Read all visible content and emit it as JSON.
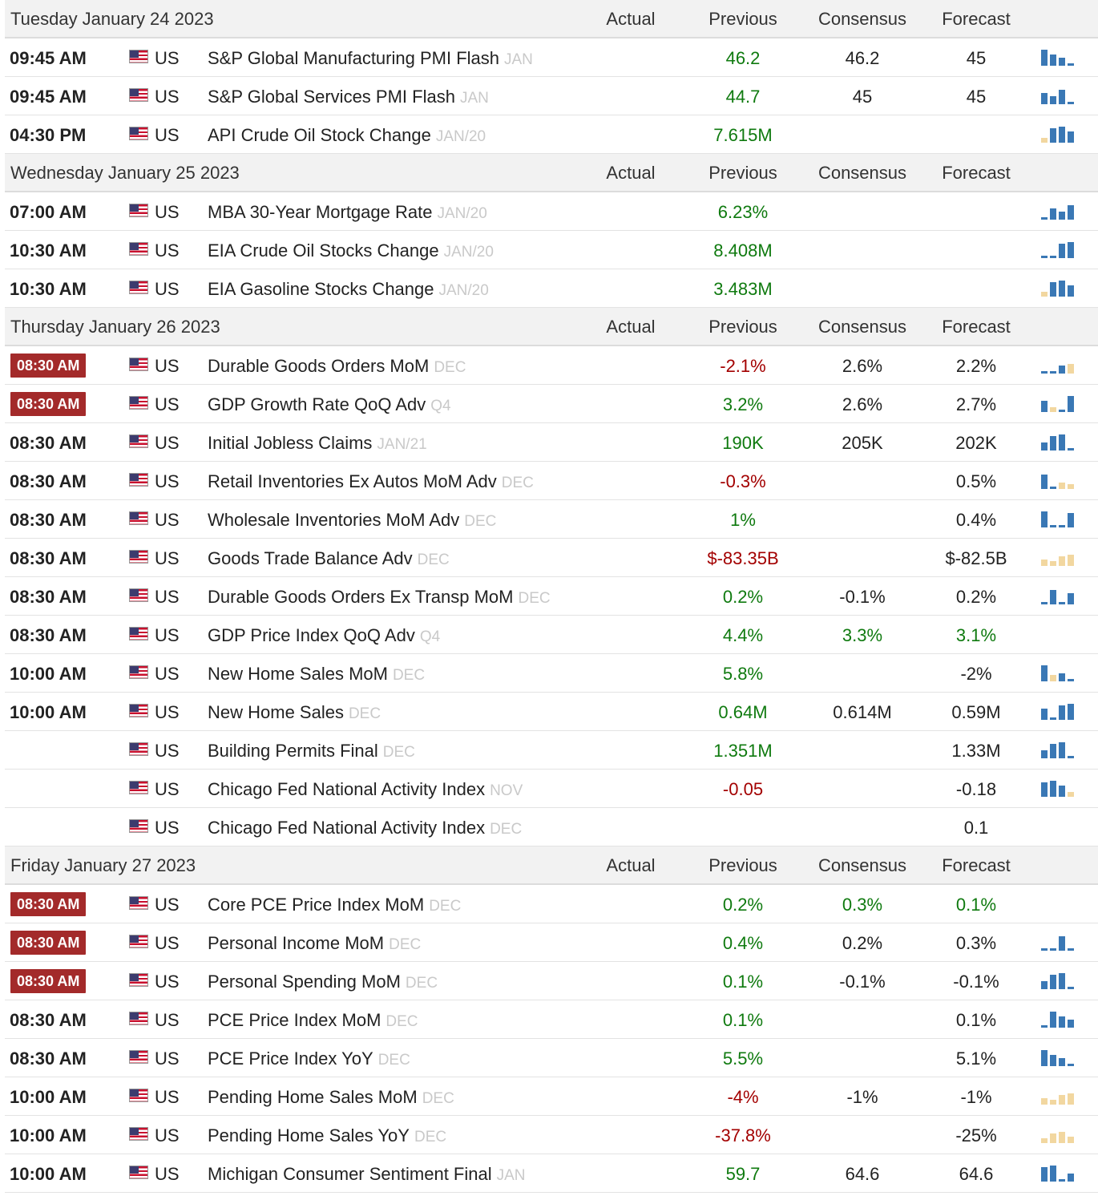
{
  "columns": {
    "actual": "Actual",
    "previous": "Previous",
    "consensus": "Consensus",
    "forecast": "Forecast"
  },
  "country": "US",
  "colors": {
    "positive": "#0f7a0f",
    "negative": "#a30000",
    "neutral": "#222222",
    "high_importance_badge": "#a32a2a",
    "spark_blue": "#3a78b5",
    "spark_tan": "#f2d7a0"
  },
  "days": [
    {
      "date": "Tuesday January 24 2023",
      "events": [
        {
          "time": "09:45 AM",
          "high": false,
          "name": "S&P Global Manufacturing PMI Flash",
          "ref": "JAN",
          "actual": "",
          "previous": "46.2",
          "previous_color": "g",
          "consensus": "46.2",
          "consensus_color": "n",
          "forecast": "45",
          "forecast_color": "n",
          "spark": "bbbd"
        },
        {
          "time": "09:45 AM",
          "high": false,
          "name": "S&P Global Services PMI Flash",
          "ref": "JAN",
          "actual": "",
          "previous": "44.7",
          "previous_color": "g",
          "consensus": "45",
          "consensus_color": "n",
          "forecast": "45",
          "forecast_color": "n",
          "spark": "bbbd"
        },
        {
          "time": "04:30 PM",
          "high": false,
          "name": "API Crude Oil Stock Change",
          "ref": "JAN/20",
          "actual": "",
          "previous": "7.615M",
          "previous_color": "g",
          "consensus": "",
          "consensus_color": "n",
          "forecast": "",
          "forecast_color": "n",
          "spark": "tbbb"
        }
      ]
    },
    {
      "date": "Wednesday January 25 2023",
      "events": [
        {
          "time": "07:00 AM",
          "high": false,
          "name": "MBA 30-Year Mortgage Rate",
          "ref": "JAN/20",
          "actual": "",
          "previous": "6.23%",
          "previous_color": "g",
          "consensus": "",
          "consensus_color": "n",
          "forecast": "",
          "forecast_color": "n",
          "spark": "dbbb"
        },
        {
          "time": "10:30 AM",
          "high": false,
          "name": "EIA Crude Oil Stocks Change",
          "ref": "JAN/20",
          "actual": "",
          "previous": "8.408M",
          "previous_color": "g",
          "consensus": "",
          "consensus_color": "n",
          "forecast": "",
          "forecast_color": "n",
          "spark": "ddbb"
        },
        {
          "time": "10:30 AM",
          "high": false,
          "name": "EIA Gasoline Stocks Change",
          "ref": "JAN/20",
          "actual": "",
          "previous": "3.483M",
          "previous_color": "g",
          "consensus": "",
          "consensus_color": "n",
          "forecast": "",
          "forecast_color": "n",
          "spark": "tbbb"
        }
      ]
    },
    {
      "date": "Thursday January 26 2023",
      "events": [
        {
          "time": "08:30 AM",
          "high": true,
          "name": "Durable Goods Orders MoM",
          "ref": "DEC",
          "actual": "",
          "previous": "-2.1%",
          "previous_color": "r",
          "consensus": "2.6%",
          "consensus_color": "n",
          "forecast": "2.2%",
          "forecast_color": "n",
          "spark": "ddbt"
        },
        {
          "time": "08:30 AM",
          "high": true,
          "name": "GDP Growth Rate QoQ Adv",
          "ref": "Q4",
          "actual": "",
          "previous": "3.2%",
          "previous_color": "g",
          "consensus": "2.6%",
          "consensus_color": "n",
          "forecast": "2.7%",
          "forecast_color": "n",
          "spark": "btdb"
        },
        {
          "time": "08:30 AM",
          "high": false,
          "name": "Initial Jobless Claims",
          "ref": "JAN/21",
          "actual": "",
          "previous": "190K",
          "previous_color": "g",
          "consensus": "205K",
          "consensus_color": "n",
          "forecast": "202K",
          "forecast_color": "n",
          "spark": "bbbd"
        },
        {
          "time": "08:30 AM",
          "high": false,
          "name": "Retail Inventories Ex Autos MoM Adv",
          "ref": "DEC",
          "actual": "",
          "previous": "-0.3%",
          "previous_color": "r",
          "consensus": "",
          "consensus_color": "n",
          "forecast": "0.5%",
          "forecast_color": "n",
          "spark": "bdtt"
        },
        {
          "time": "08:30 AM",
          "high": false,
          "name": "Wholesale Inventories MoM Adv",
          "ref": "DEC",
          "actual": "",
          "previous": "1%",
          "previous_color": "g",
          "consensus": "",
          "consensus_color": "n",
          "forecast": "0.4%",
          "forecast_color": "n",
          "spark": "bddb"
        },
        {
          "time": "08:30 AM",
          "high": false,
          "name": "Goods Trade Balance Adv",
          "ref": "DEC",
          "actual": "",
          "previous": "$-83.35B",
          "previous_color": "r",
          "consensus": "",
          "consensus_color": "n",
          "forecast": "$-82.5B",
          "forecast_color": "n",
          "spark": "tttt"
        },
        {
          "time": "08:30 AM",
          "high": false,
          "name": "Durable Goods Orders Ex Transp MoM",
          "ref": "DEC",
          "actual": "",
          "previous": "0.2%",
          "previous_color": "g",
          "consensus": "-0.1%",
          "consensus_color": "n",
          "forecast": "0.2%",
          "forecast_color": "n",
          "spark": "dbdb"
        },
        {
          "time": "08:30 AM",
          "high": false,
          "name": "GDP Price Index QoQ Adv",
          "ref": "Q4",
          "actual": "",
          "previous": "4.4%",
          "previous_color": "g",
          "consensus": "3.3%",
          "consensus_color": "g",
          "forecast": "3.1%",
          "forecast_color": "g",
          "spark": ""
        },
        {
          "time": "10:00 AM",
          "high": false,
          "name": "New Home Sales MoM",
          "ref": "DEC",
          "actual": "",
          "previous": "5.8%",
          "previous_color": "g",
          "consensus": "",
          "consensus_color": "n",
          "forecast": "-2%",
          "forecast_color": "n",
          "spark": "btbd"
        },
        {
          "time": "10:00 AM",
          "high": false,
          "name": "New Home Sales",
          "ref": "DEC",
          "actual": "",
          "previous": "0.64M",
          "previous_color": "g",
          "consensus": "0.614M",
          "consensus_color": "n",
          "forecast": "0.59M",
          "forecast_color": "n",
          "spark": "bdbb"
        },
        {
          "time": "",
          "high": false,
          "name": "Building Permits Final",
          "ref": "DEC",
          "actual": "",
          "previous": "1.351M",
          "previous_color": "g",
          "consensus": "",
          "consensus_color": "n",
          "forecast": "1.33M",
          "forecast_color": "n",
          "spark": "bbbd"
        },
        {
          "time": "",
          "high": false,
          "name": "Chicago Fed National Activity Index",
          "ref": "NOV",
          "actual": "",
          "previous": "-0.05",
          "previous_color": "r",
          "consensus": "",
          "consensus_color": "n",
          "forecast": "-0.18",
          "forecast_color": "n",
          "spark": "bbbt"
        },
        {
          "time": "",
          "high": false,
          "name": "Chicago Fed National Activity Index",
          "ref": "DEC",
          "actual": "",
          "previous": "",
          "previous_color": "n",
          "consensus": "",
          "consensus_color": "n",
          "forecast": "0.1",
          "forecast_color": "n",
          "spark": ""
        }
      ]
    },
    {
      "date": "Friday January 27 2023",
      "events": [
        {
          "time": "08:30 AM",
          "high": true,
          "name": "Core PCE Price Index MoM",
          "ref": "DEC",
          "actual": "",
          "previous": "0.2%",
          "previous_color": "g",
          "consensus": "0.3%",
          "consensus_color": "g",
          "forecast": "0.1%",
          "forecast_color": "g",
          "spark": ""
        },
        {
          "time": "08:30 AM",
          "high": true,
          "name": "Personal Income MoM",
          "ref": "DEC",
          "actual": "",
          "previous": "0.4%",
          "previous_color": "g",
          "consensus": "0.2%",
          "consensus_color": "n",
          "forecast": "0.3%",
          "forecast_color": "n",
          "spark": "ddbd"
        },
        {
          "time": "08:30 AM",
          "high": true,
          "name": "Personal Spending MoM",
          "ref": "DEC",
          "actual": "",
          "previous": "0.1%",
          "previous_color": "g",
          "consensus": "-0.1%",
          "consensus_color": "n",
          "forecast": "-0.1%",
          "forecast_color": "n",
          "spark": "bbbd"
        },
        {
          "time": "08:30 AM",
          "high": false,
          "name": "PCE Price Index MoM",
          "ref": "DEC",
          "actual": "",
          "previous": "0.1%",
          "previous_color": "g",
          "consensus": "",
          "consensus_color": "n",
          "forecast": "0.1%",
          "forecast_color": "n",
          "spark": "dbbb"
        },
        {
          "time": "08:30 AM",
          "high": false,
          "name": "PCE Price Index YoY",
          "ref": "DEC",
          "actual": "",
          "previous": "5.5%",
          "previous_color": "g",
          "consensus": "",
          "consensus_color": "n",
          "forecast": "5.1%",
          "forecast_color": "n",
          "spark": "bbbd"
        },
        {
          "time": "10:00 AM",
          "high": false,
          "name": "Pending Home Sales MoM",
          "ref": "DEC",
          "actual": "",
          "previous": "-4%",
          "previous_color": "r",
          "consensus": "-1%",
          "consensus_color": "n",
          "forecast": "-1%",
          "forecast_color": "n",
          "spark": "tttt"
        },
        {
          "time": "10:00 AM",
          "high": false,
          "name": "Pending Home Sales YoY",
          "ref": "DEC",
          "actual": "",
          "previous": "-37.8%",
          "previous_color": "r",
          "consensus": "",
          "consensus_color": "n",
          "forecast": "-25%",
          "forecast_color": "n",
          "spark": "tttt"
        },
        {
          "time": "10:00 AM",
          "high": false,
          "name": "Michigan Consumer Sentiment Final",
          "ref": "JAN",
          "actual": "",
          "previous": "59.7",
          "previous_color": "g",
          "consensus": "64.6",
          "consensus_color": "n",
          "forecast": "64.6",
          "forecast_color": "n",
          "spark": "bbdb"
        }
      ]
    }
  ]
}
